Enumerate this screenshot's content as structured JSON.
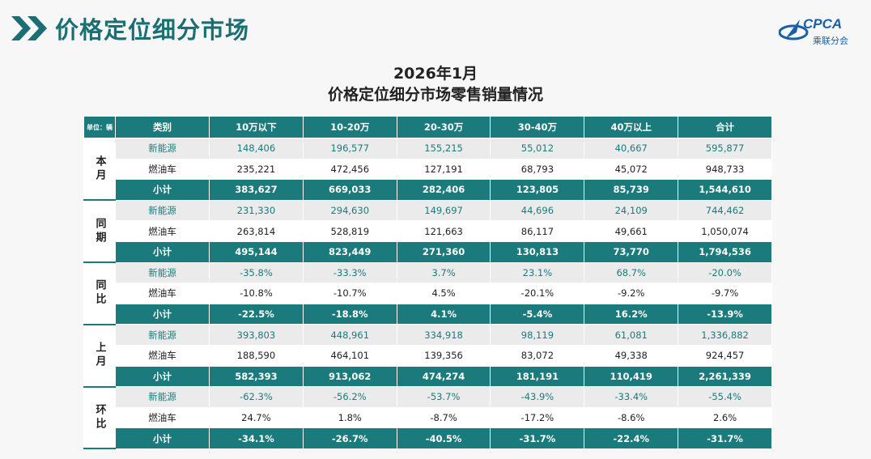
{
  "header": {
    "title": "价格定位细分市场",
    "logo_text": "CPCA",
    "logo_subtext": "乘联分会"
  },
  "table": {
    "title_line1": "2026年1月",
    "title_line2": "价格定位细分市场零售销量情况",
    "unit": "单位：辆",
    "columns": [
      "类别",
      "10万以下",
      "10-20万",
      "20-30万",
      "30-40万",
      "40万以上",
      "合计"
    ],
    "groups": [
      {
        "label": "本月",
        "rows": [
          {
            "label": "新能源",
            "values": [
              "148,406",
              "196,577",
              "155,215",
              "55,012",
              "40,667",
              "595,877"
            ]
          },
          {
            "label": "燃油车",
            "values": [
              "235,221",
              "472,456",
              "127,191",
              "68,793",
              "45,072",
              "948,733"
            ]
          },
          {
            "label": "小计",
            "values": [
              "383,627",
              "669,033",
              "282,406",
              "123,805",
              "85,739",
              "1,544,610"
            ]
          }
        ]
      },
      {
        "label": "同期",
        "rows": [
          {
            "label": "新能源",
            "values": [
              "231,330",
              "294,630",
              "149,697",
              "44,696",
              "24,109",
              "744,462"
            ]
          },
          {
            "label": "燃油车",
            "values": [
              "263,814",
              "528,819",
              "121,663",
              "86,117",
              "49,661",
              "1,050,074"
            ]
          },
          {
            "label": "小计",
            "values": [
              "495,144",
              "823,449",
              "271,360",
              "130,813",
              "73,770",
              "1,794,536"
            ]
          }
        ]
      },
      {
        "label": "同比",
        "rows": [
          {
            "label": "新能源",
            "values": [
              "-35.8%",
              "-33.3%",
              "3.7%",
              "23.1%",
              "68.7%",
              "-20.0%"
            ]
          },
          {
            "label": "燃油车",
            "values": [
              "-10.8%",
              "-10.7%",
              "4.5%",
              "-20.1%",
              "-9.2%",
              "-9.7%"
            ]
          },
          {
            "label": "小计",
            "values": [
              "-22.5%",
              "-18.8%",
              "4.1%",
              "-5.4%",
              "16.2%",
              "-13.9%"
            ]
          }
        ]
      },
      {
        "label": "上月",
        "rows": [
          {
            "label": "新能源",
            "values": [
              "393,803",
              "448,961",
              "334,918",
              "98,119",
              "61,081",
              "1,336,882"
            ]
          },
          {
            "label": "燃油车",
            "values": [
              "188,590",
              "464,101",
              "139,356",
              "83,072",
              "49,338",
              "924,457"
            ]
          },
          {
            "label": "小计",
            "values": [
              "582,393",
              "913,062",
              "474,274",
              "181,191",
              "110,419",
              "2,261,339"
            ]
          }
        ]
      },
      {
        "label": "环比",
        "rows": [
          {
            "label": "新能源",
            "values": [
              "-62.3%",
              "-56.2%",
              "-53.7%",
              "-43.9%",
              "-33.4%",
              "-55.4%"
            ]
          },
          {
            "label": "燃油车",
            "values": [
              "24.7%",
              "1.8%",
              "-8.7%",
              "-17.2%",
              "-8.6%",
              "2.6%"
            ]
          },
          {
            "label": "小计",
            "values": [
              "-34.1%",
              "-26.7%",
              "-40.5%",
              "-31.7%",
              "-22.4%",
              "-31.7%"
            ]
          }
        ]
      }
    ]
  }
}
